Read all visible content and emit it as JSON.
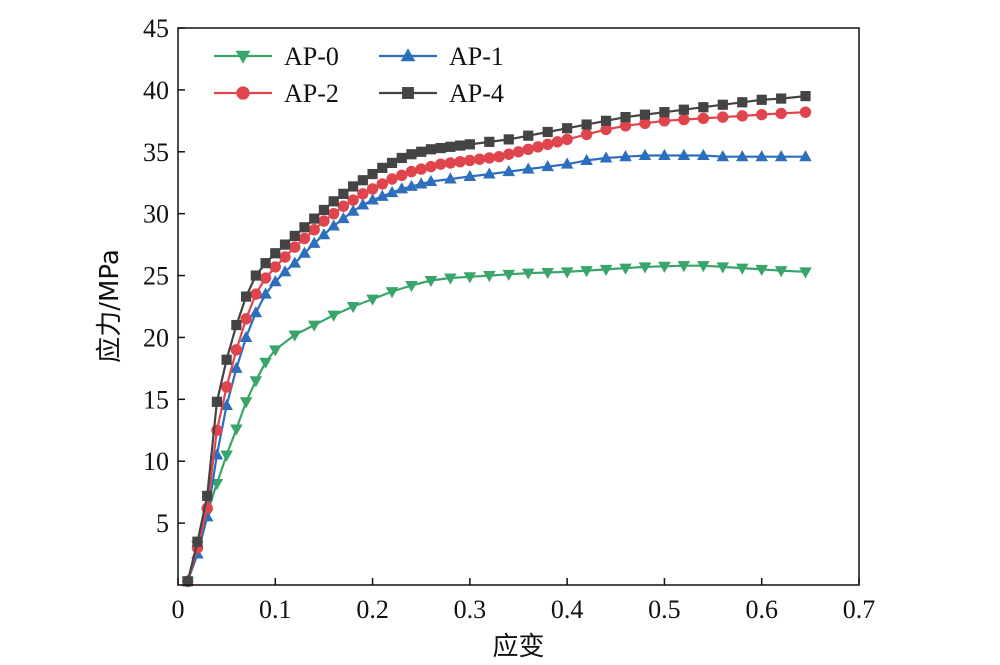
{
  "chart_data": {
    "type": "line",
    "xlabel": "应变",
    "ylabel": "应力/MPa",
    "xlim": [
      0,
      0.7
    ],
    "ylim": [
      0,
      45
    ],
    "x_ticks": [
      0,
      0.1,
      0.2,
      0.3,
      0.4,
      0.5,
      0.6,
      0.7
    ],
    "x_tick_labels": [
      "0",
      "0.1",
      "0.2",
      "0.3",
      "0.4",
      "0.5",
      "0.6",
      "0.7"
    ],
    "y_ticks": [
      5,
      10,
      15,
      20,
      25,
      30,
      35,
      40,
      45
    ],
    "y_tick_labels": [
      "5",
      "10",
      "15",
      "20",
      "25",
      "30",
      "35",
      "40",
      "45"
    ],
    "grid": false,
    "legend_position": "top-left",
    "series": [
      {
        "name": "AP-0",
        "color": "#3aa56b",
        "marker": "triangle-down",
        "x": [
          0.01,
          0.02,
          0.03,
          0.04,
          0.05,
          0.06,
          0.07,
          0.08,
          0.09,
          0.1,
          0.12,
          0.14,
          0.16,
          0.18,
          0.2,
          0.22,
          0.24,
          0.26,
          0.28,
          0.3,
          0.32,
          0.34,
          0.36,
          0.38,
          0.4,
          0.42,
          0.44,
          0.46,
          0.48,
          0.5,
          0.52,
          0.54,
          0.56,
          0.58,
          0.6,
          0.62,
          0.645
        ],
        "y": [
          0.3,
          3.2,
          5.8,
          8.2,
          10.5,
          12.6,
          14.8,
          16.5,
          18.0,
          19.0,
          20.2,
          21.0,
          21.8,
          22.5,
          23.1,
          23.7,
          24.2,
          24.6,
          24.8,
          24.9,
          25.0,
          25.1,
          25.2,
          25.25,
          25.3,
          25.4,
          25.5,
          25.6,
          25.7,
          25.75,
          25.8,
          25.8,
          25.7,
          25.6,
          25.5,
          25.4,
          25.3
        ]
      },
      {
        "name": "AP-1",
        "color": "#2e6fbd",
        "marker": "triangle-up",
        "x": [
          0.01,
          0.02,
          0.03,
          0.04,
          0.05,
          0.06,
          0.07,
          0.08,
          0.09,
          0.1,
          0.11,
          0.12,
          0.13,
          0.14,
          0.15,
          0.16,
          0.17,
          0.18,
          0.19,
          0.2,
          0.21,
          0.22,
          0.23,
          0.24,
          0.25,
          0.26,
          0.28,
          0.3,
          0.32,
          0.34,
          0.36,
          0.38,
          0.4,
          0.42,
          0.44,
          0.46,
          0.48,
          0.5,
          0.52,
          0.54,
          0.56,
          0.58,
          0.6,
          0.62,
          0.645
        ],
        "y": [
          0.3,
          2.5,
          5.5,
          10.5,
          14.5,
          17.5,
          20.0,
          22.0,
          23.5,
          24.5,
          25.3,
          26.0,
          26.8,
          27.6,
          28.3,
          29.0,
          29.6,
          30.2,
          30.7,
          31.1,
          31.4,
          31.7,
          32.0,
          32.2,
          32.4,
          32.6,
          32.8,
          33.0,
          33.2,
          33.4,
          33.6,
          33.8,
          34.0,
          34.3,
          34.5,
          34.6,
          34.7,
          34.7,
          34.7,
          34.7,
          34.6,
          34.6,
          34.6,
          34.6,
          34.6
        ]
      },
      {
        "name": "AP-2",
        "color": "#e0454d",
        "marker": "circle",
        "x": [
          0.01,
          0.02,
          0.03,
          0.04,
          0.05,
          0.06,
          0.07,
          0.08,
          0.09,
          0.1,
          0.11,
          0.12,
          0.13,
          0.14,
          0.15,
          0.16,
          0.17,
          0.18,
          0.19,
          0.2,
          0.21,
          0.22,
          0.23,
          0.24,
          0.25,
          0.26,
          0.27,
          0.28,
          0.29,
          0.3,
          0.31,
          0.32,
          0.33,
          0.34,
          0.35,
          0.36,
          0.37,
          0.38,
          0.39,
          0.4,
          0.42,
          0.44,
          0.46,
          0.48,
          0.5,
          0.52,
          0.54,
          0.56,
          0.58,
          0.6,
          0.62,
          0.645
        ],
        "y": [
          0.3,
          3.0,
          6.2,
          12.5,
          16.0,
          19.0,
          21.5,
          23.5,
          24.8,
          25.7,
          26.5,
          27.3,
          28.0,
          28.7,
          29.4,
          30.0,
          30.6,
          31.1,
          31.6,
          32.0,
          32.4,
          32.8,
          33.1,
          33.4,
          33.6,
          33.8,
          34.0,
          34.1,
          34.2,
          34.3,
          34.4,
          34.5,
          34.6,
          34.8,
          35.0,
          35.2,
          35.4,
          35.6,
          35.8,
          36.0,
          36.4,
          36.8,
          37.1,
          37.3,
          37.5,
          37.6,
          37.7,
          37.8,
          37.9,
          38.0,
          38.1,
          38.2
        ]
      },
      {
        "name": "AP-4",
        "color": "#444444",
        "marker": "square",
        "x": [
          0.01,
          0.02,
          0.03,
          0.04,
          0.05,
          0.06,
          0.07,
          0.08,
          0.09,
          0.1,
          0.11,
          0.12,
          0.13,
          0.14,
          0.15,
          0.16,
          0.17,
          0.18,
          0.19,
          0.2,
          0.21,
          0.22,
          0.23,
          0.24,
          0.25,
          0.26,
          0.27,
          0.28,
          0.29,
          0.3,
          0.32,
          0.34,
          0.36,
          0.38,
          0.4,
          0.42,
          0.44,
          0.46,
          0.48,
          0.5,
          0.52,
          0.54,
          0.56,
          0.58,
          0.6,
          0.62,
          0.645
        ],
        "y": [
          0.3,
          3.5,
          7.2,
          14.8,
          18.2,
          21.0,
          23.3,
          25.0,
          26.0,
          26.8,
          27.5,
          28.2,
          28.9,
          29.6,
          30.3,
          31.0,
          31.6,
          32.2,
          32.7,
          33.2,
          33.7,
          34.1,
          34.5,
          34.8,
          35.0,
          35.2,
          35.3,
          35.4,
          35.5,
          35.6,
          35.8,
          36.0,
          36.3,
          36.6,
          36.9,
          37.2,
          37.5,
          37.8,
          38.0,
          38.2,
          38.4,
          38.6,
          38.8,
          39.0,
          39.2,
          39.3,
          39.5
        ]
      }
    ]
  }
}
